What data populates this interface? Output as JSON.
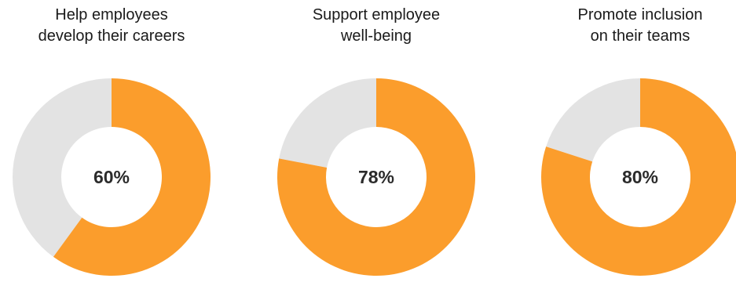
{
  "colors": {
    "filled": "#fb9d2c",
    "remaining": "#e3e3e3"
  },
  "chart_data": [
    {
      "type": "pie",
      "title": "Help employees\ndevelop their careers",
      "value": 60,
      "remaining": 40,
      "label": "60%"
    },
    {
      "type": "pie",
      "title": "Support employee\nwell-being",
      "value": 78,
      "remaining": 22,
      "label": "78%"
    },
    {
      "type": "pie",
      "title": "Promote inclusion\non their teams",
      "value": 80,
      "remaining": 20,
      "label": "80%"
    }
  ]
}
